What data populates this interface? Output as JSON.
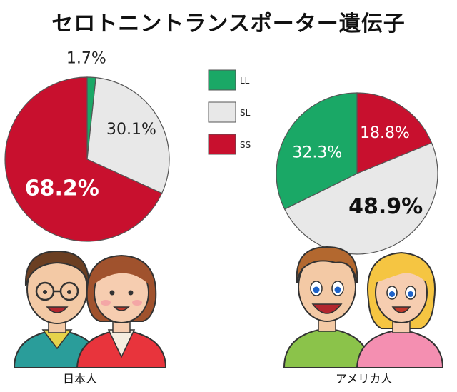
{
  "title": "セロトニントランスポーター遺伝子",
  "chart_data": [
    {
      "type": "pie",
      "group_label": "日本人",
      "legend": [
        "LL",
        "SL",
        "SS"
      ],
      "slices": [
        {
          "label": "LL",
          "value": 1.7,
          "text": "1.7%",
          "color": "#1aa866"
        },
        {
          "label": "SL",
          "value": 30.1,
          "text": "30.1%",
          "color": "#e8e8e8"
        },
        {
          "label": "SS",
          "value": 68.2,
          "text": "68.2%",
          "color": "#c8102e"
        }
      ]
    },
    {
      "type": "pie",
      "group_label": "アメリカ人",
      "legend": [
        "LL",
        "SL",
        "SS"
      ],
      "slices": [
        {
          "label": "SS",
          "value": 18.8,
          "text": "18.8%",
          "color": "#c8102e"
        },
        {
          "label": "SL",
          "value": 48.9,
          "text": "48.9%",
          "color": "#e8e8e8"
        },
        {
          "label": "LL",
          "value": 32.3,
          "text": "32.3%",
          "color": "#1aa866"
        }
      ]
    }
  ],
  "legend": [
    {
      "label": "LL",
      "color": "#1aa866"
    },
    {
      "label": "SL",
      "color": "#e8e8e8"
    },
    {
      "label": "SS",
      "color": "#c8102e"
    }
  ],
  "illustrations": [
    "japanese-man-icon",
    "japanese-woman-icon",
    "american-man-icon",
    "american-woman-icon"
  ]
}
